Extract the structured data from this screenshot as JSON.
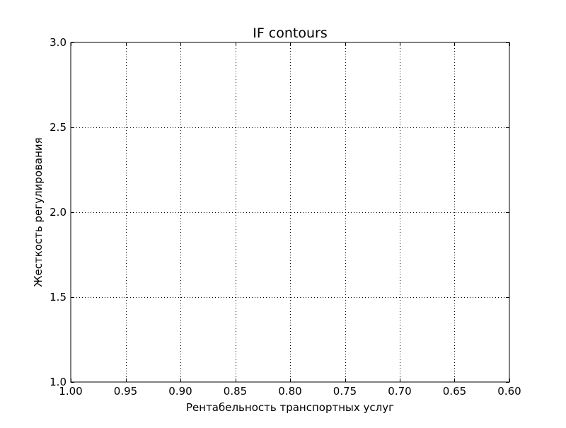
{
  "chart_data": {
    "type": "line",
    "title": "IF contours",
    "xlabel": "Рентабельность транспортных услуг",
    "ylabel": "Жесткость регулирования",
    "xlim": [
      1.0,
      0.6
    ],
    "ylim": [
      1.0,
      3.0
    ],
    "x_ticks": [
      1.0,
      0.95,
      0.9,
      0.85,
      0.8,
      0.75,
      0.7,
      0.65,
      0.6
    ],
    "x_tick_labels": [
      "1.00",
      "0.95",
      "0.90",
      "0.85",
      "0.80",
      "0.75",
      "0.70",
      "0.65",
      "0.60"
    ],
    "y_ticks": [
      1.0,
      1.5,
      2.0,
      2.5,
      3.0
    ],
    "y_tick_labels": [
      "1.0",
      "1.5",
      "2.0",
      "2.5",
      "3.0"
    ],
    "x_axis_inverted": true,
    "grid": true,
    "grid_style": "dotted",
    "series": []
  }
}
